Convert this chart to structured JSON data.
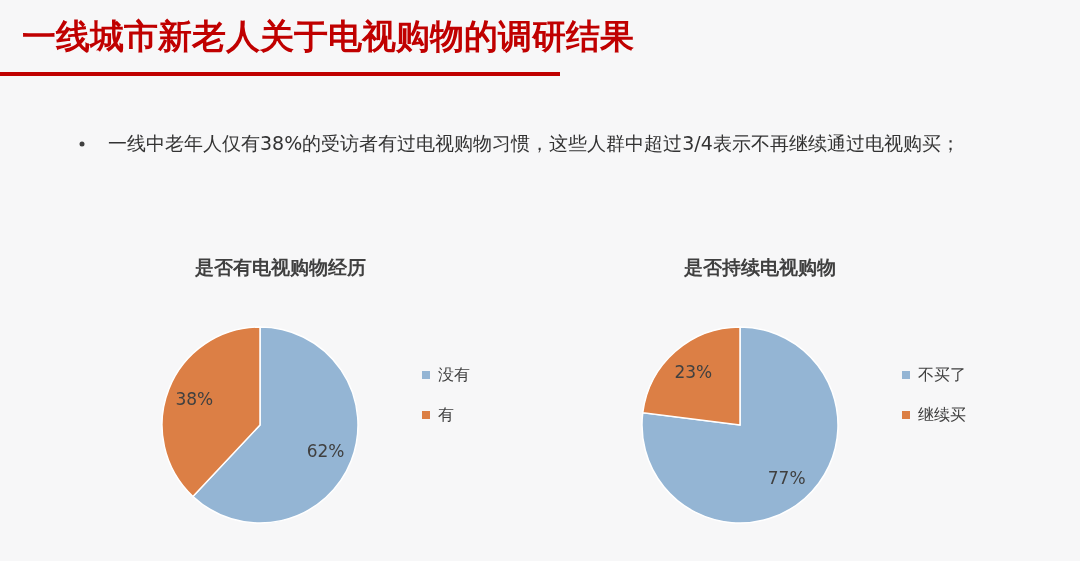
{
  "chart_data": [
    {
      "type": "other",
      "title": "一线城市新老人关于电视购物的调研结果",
      "annotations": [
        "一线中老年人仅有38%的受访者有过电视购物习惯，这些人群中超过3/4表示不再继续通过电视购买；"
      ]
    },
    {
      "type": "pie",
      "title": "是否有电视购物经历",
      "categories": [
        "没有",
        "有"
      ],
      "values": [
        62,
        38
      ],
      "colors": [
        "#94b5d4",
        "#dc7f45"
      ],
      "value_labels": [
        "62%",
        "38%"
      ],
      "legend": "right"
    },
    {
      "type": "pie",
      "title": "是否持续电视购物",
      "categories": [
        "不买了",
        "继续买"
      ],
      "values": [
        77,
        23
      ],
      "colors": [
        "#94b5d4",
        "#dc7f45"
      ],
      "value_labels": [
        "77%",
        "23%"
      ],
      "legend": "right"
    }
  ]
}
